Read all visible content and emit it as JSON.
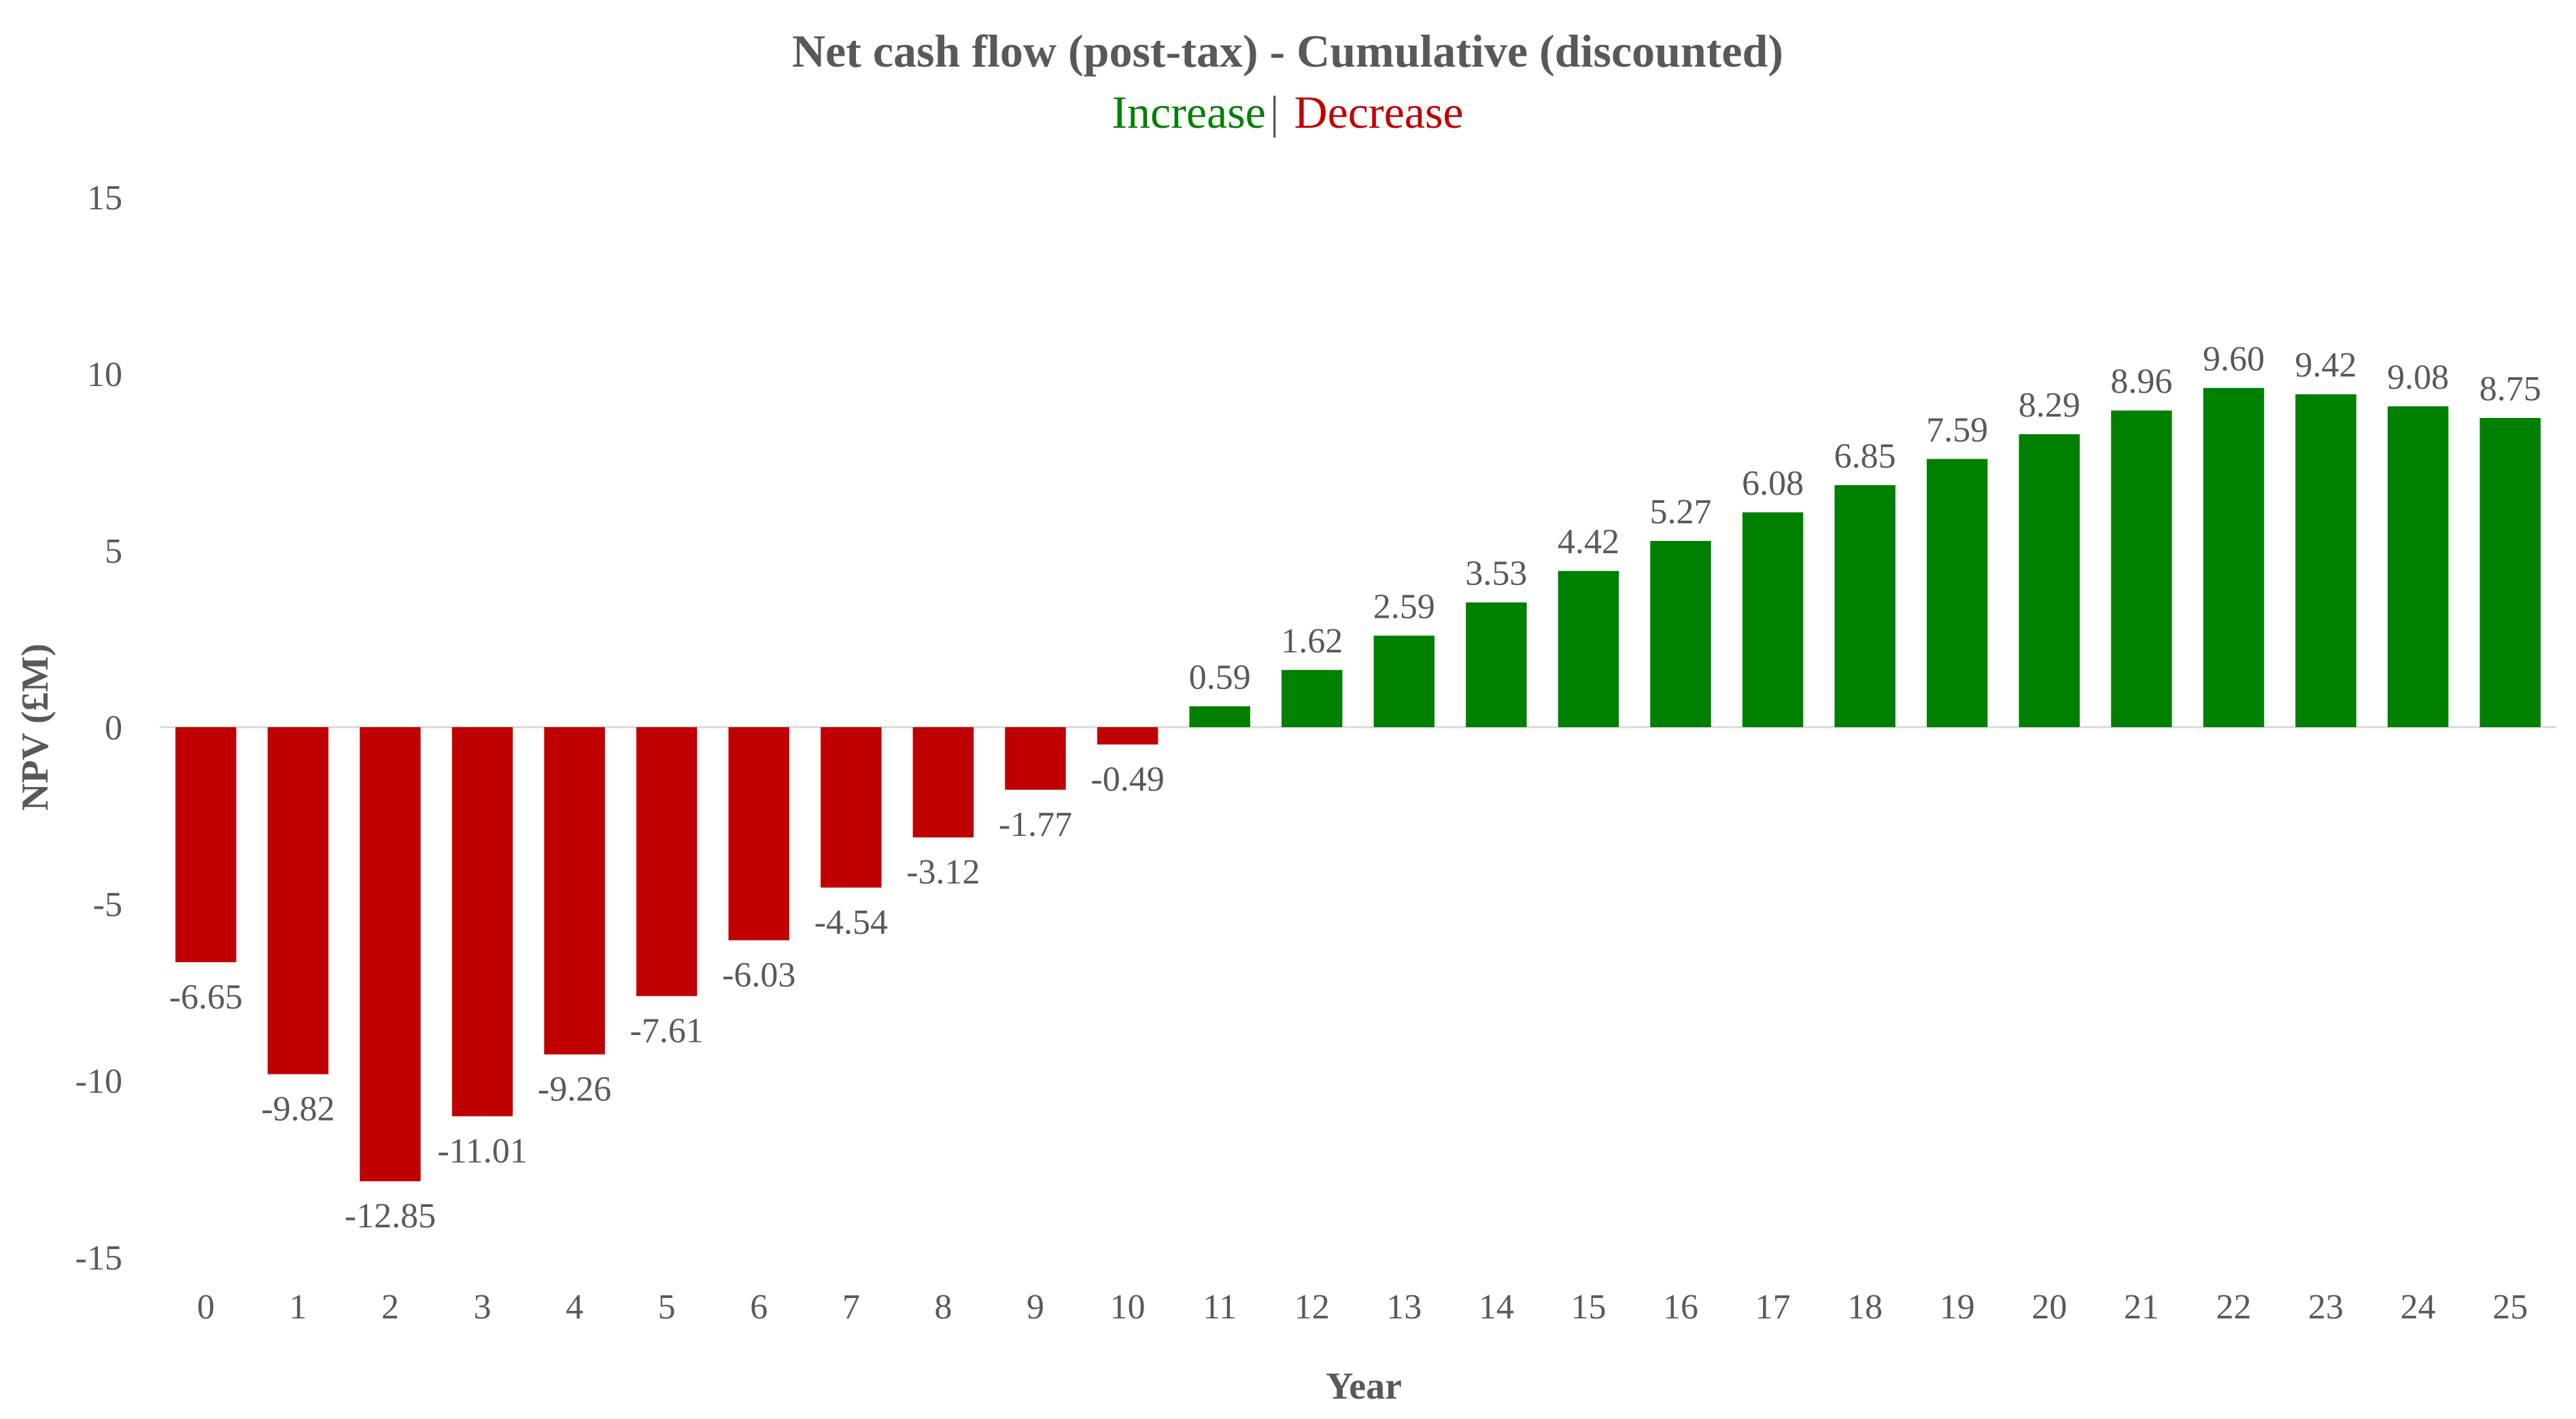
{
  "chart_data": {
    "type": "bar",
    "title": "Net cash flow (post-tax) - Cumulative (discounted)",
    "subtitle": {
      "increase_label": "Increase",
      "separator": "|",
      "decrease_label": "Decrease"
    },
    "xlabel": "Year",
    "ylabel": "NPV (£M)",
    "ylim": [
      -15,
      15
    ],
    "yticks": [
      15,
      10,
      5,
      0,
      -5,
      -10,
      -15
    ],
    "grid": false,
    "legend": "none",
    "colors": {
      "increase": "#008000",
      "decrease": "#C00000",
      "text": "#595959",
      "axis": "#D9D9D9"
    },
    "categories": [
      "0",
      "1",
      "2",
      "3",
      "4",
      "5",
      "6",
      "7",
      "8",
      "9",
      "10",
      "11",
      "12",
      "13",
      "14",
      "15",
      "16",
      "17",
      "18",
      "19",
      "20",
      "21",
      "22",
      "23",
      "24",
      "25"
    ],
    "values": [
      -6.65,
      -9.82,
      -12.85,
      -11.01,
      -9.26,
      -7.61,
      -6.03,
      -4.54,
      -3.12,
      -1.77,
      -0.49,
      0.59,
      1.62,
      2.59,
      3.53,
      4.42,
      5.27,
      6.08,
      6.85,
      7.59,
      8.29,
      8.96,
      9.6,
      9.42,
      9.08,
      8.75
    ],
    "data_labels": [
      "-6.65",
      "-9.82",
      "-12.85",
      "-11.01",
      "-9.26",
      "-7.61",
      "-6.03",
      "-4.54",
      "-3.12",
      "-1.77",
      "-0.49",
      "0.59",
      "1.62",
      "2.59",
      "3.53",
      "4.42",
      "5.27",
      "6.08",
      "6.85",
      "7.59",
      "8.29",
      "8.96",
      "9.60",
      "9.42",
      "9.08",
      "8.75"
    ]
  }
}
